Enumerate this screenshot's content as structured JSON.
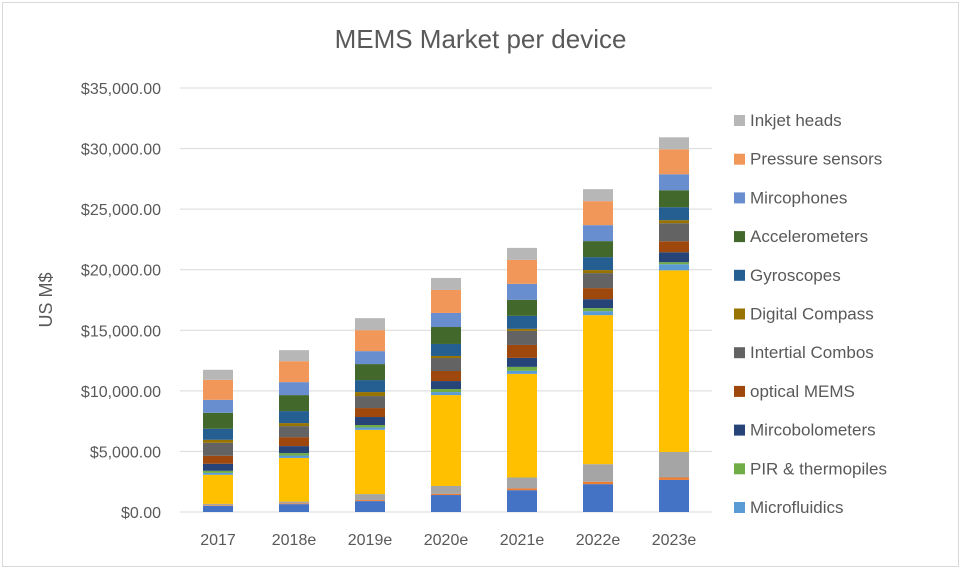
{
  "chart_data": {
    "type": "bar",
    "stacked": true,
    "title": "MEMS Market per device",
    "xlabel": "",
    "ylabel": "US M$",
    "ylim": [
      0,
      35000
    ],
    "yticks": [
      "$0.00",
      "$5,000.00",
      "$10,000.00",
      "$15,000.00",
      "$20,000.00",
      "$25,000.00",
      "$30,000.00",
      "$35,000.00"
    ],
    "ytick_values": [
      0,
      5000,
      10000,
      15000,
      20000,
      25000,
      30000,
      35000
    ],
    "grid": true,
    "legend_position": "right",
    "categories": [
      "2017",
      "2018e",
      "2019e",
      "2020e",
      "2021e",
      "2022e",
      "2023e"
    ],
    "series": [
      {
        "name": "",
        "color": "#4472C4",
        "in_legend": false,
        "values": [
          500,
          650,
          900,
          1400,
          1800,
          2300,
          2650
        ]
      },
      {
        "name": "",
        "color": "#ED7D31",
        "in_legend": false,
        "values": [
          50,
          60,
          80,
          100,
          150,
          200,
          200
        ]
      },
      {
        "name": "",
        "color": "#A5A5A5",
        "in_legend": false,
        "values": [
          120,
          150,
          500,
          650,
          900,
          1450,
          2100
        ]
      },
      {
        "name": "",
        "color": "#FFC000",
        "in_legend": false,
        "values": [
          2400,
          3600,
          5300,
          7500,
          8550,
          12300,
          15000
        ]
      },
      {
        "name": "Microfluidics",
        "color": "#5B9BD5",
        "in_legend": true,
        "values": [
          160,
          200,
          200,
          250,
          250,
          330,
          500
        ]
      },
      {
        "name": "PIR & thermopiles",
        "color": "#70AD47",
        "in_legend": true,
        "values": [
          170,
          200,
          200,
          250,
          330,
          250,
          170
        ]
      },
      {
        "name": "Mircobolometers",
        "color": "#264478",
        "in_legend": true,
        "values": [
          580,
          580,
          660,
          660,
          740,
          740,
          820
        ]
      },
      {
        "name": "optical MEMS",
        "color": "#9E480E",
        "in_legend": true,
        "values": [
          660,
          740,
          740,
          830,
          1070,
          910,
          910
        ]
      },
      {
        "name": "Intertial Combos",
        "color": "#636363",
        "in_legend": true,
        "values": [
          1070,
          910,
          990,
          1070,
          1160,
          1240,
          1490
        ]
      },
      {
        "name": "Digital Compass",
        "color": "#997300",
        "in_legend": true,
        "values": [
          250,
          250,
          330,
          170,
          170,
          250,
          250
        ]
      },
      {
        "name": "Gyroscopes",
        "color": "#255E91",
        "in_legend": true,
        "values": [
          910,
          990,
          990,
          990,
          1070,
          1070,
          1070
        ]
      },
      {
        "name": "Accelerometers",
        "color": "#43682B",
        "in_legend": true,
        "values": [
          1320,
          1320,
          1320,
          1400,
          1320,
          1320,
          1400
        ]
      },
      {
        "name": "Mircophones",
        "color": "#698ED0",
        "in_legend": true,
        "values": [
          1070,
          1070,
          1070,
          1160,
          1320,
          1320,
          1320
        ]
      },
      {
        "name": "Pressure sensors",
        "color": "#F1975A",
        "in_legend": true,
        "values": [
          1650,
          1730,
          1730,
          1900,
          1980,
          1980,
          2060
        ]
      },
      {
        "name": "Inkjet heads",
        "color": "#B7B7B7",
        "in_legend": true,
        "values": [
          830,
          910,
          990,
          990,
          990,
          990,
          990
        ]
      }
    ]
  }
}
